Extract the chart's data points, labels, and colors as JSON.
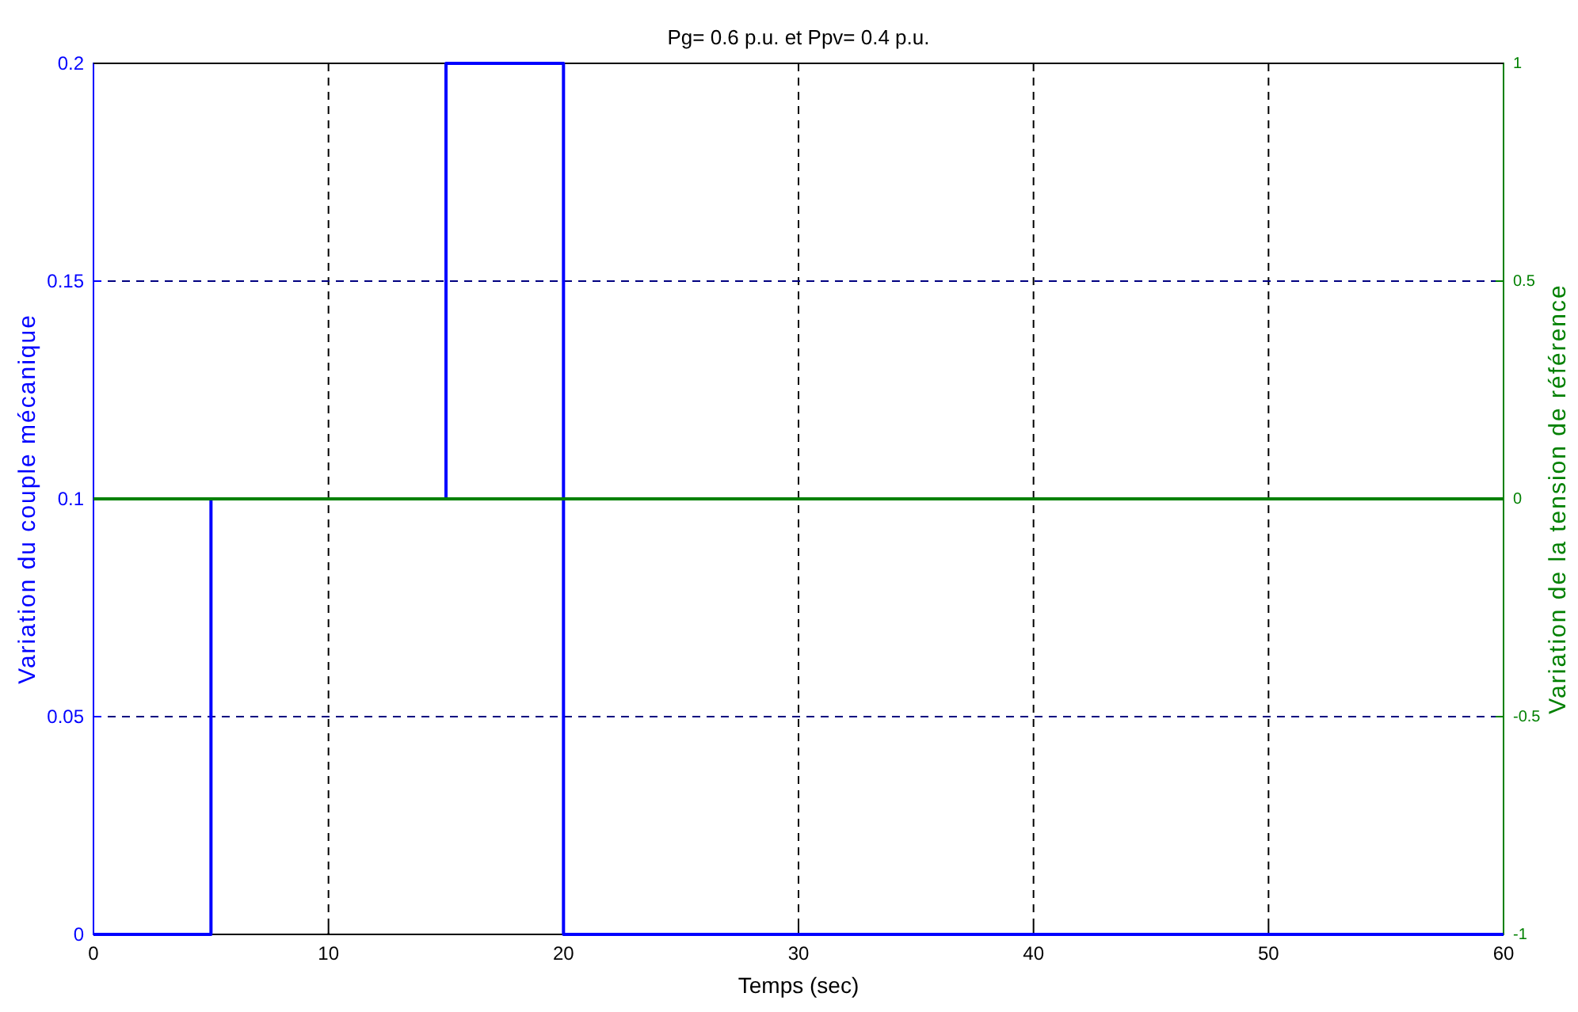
{
  "chart_data": {
    "type": "step",
    "title": "Pg= 0.6 p.u. et Ppv= 0.4 p.u.",
    "xlabel": "Temps (sec)",
    "ylabel": "Variation du couple mécanique",
    "y2label": "Variation de la tension de référence",
    "xlim": [
      0,
      60
    ],
    "xticks": [
      0,
      10,
      20,
      30,
      40,
      50,
      60
    ],
    "ylim": [
      0,
      0.2
    ],
    "yticks": [
      0,
      0.05,
      0.1,
      0.15,
      0.2
    ],
    "y2lim": [
      -1,
      1
    ],
    "y2ticks": [
      -1,
      -0.5,
      0,
      0.5,
      1
    ],
    "grid": true,
    "line_style": "solid",
    "series": [
      {
        "color": "#0000ff",
        "x": [
          0,
          5,
          15,
          20,
          60
        ],
        "values": [
          0,
          0.1,
          0.2,
          0,
          0
        ]
      },
      {
        "type": "line",
        "color": "#008000",
        "axis": "y2",
        "x": [
          0,
          60
        ],
        "values": [
          0,
          0
        ]
      }
    ]
  }
}
